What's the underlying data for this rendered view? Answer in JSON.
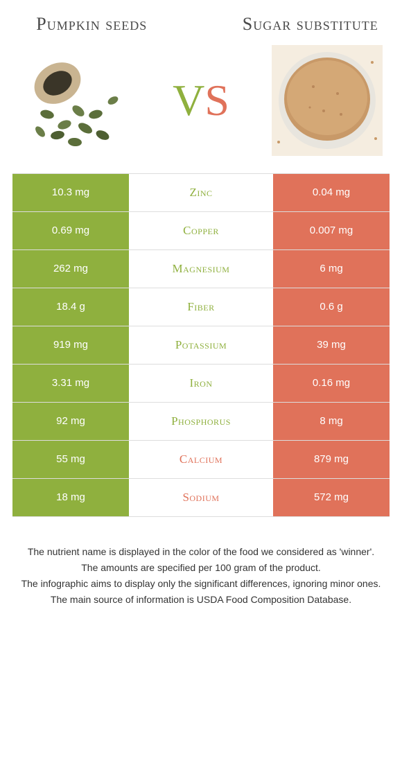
{
  "colors": {
    "left": "#8fb03e",
    "right": "#e0725a",
    "row_border": "#dddddd",
    "text_dark": "#4a4a4a"
  },
  "header": {
    "left_title": "Pumpkin seeds",
    "right_title": "Sugar substitute",
    "vs_v": "V",
    "vs_s": "S"
  },
  "rows": [
    {
      "left": "10.3 mg",
      "label": "Zinc",
      "right": "0.04 mg",
      "winner": "left"
    },
    {
      "left": "0.69 mg",
      "label": "Copper",
      "right": "0.007 mg",
      "winner": "left"
    },
    {
      "left": "262 mg",
      "label": "Magnesium",
      "right": "6 mg",
      "winner": "left"
    },
    {
      "left": "18.4 g",
      "label": "Fiber",
      "right": "0.6 g",
      "winner": "left"
    },
    {
      "left": "919 mg",
      "label": "Potassium",
      "right": "39 mg",
      "winner": "left"
    },
    {
      "left": "3.31 mg",
      "label": "Iron",
      "right": "0.16 mg",
      "winner": "left"
    },
    {
      "left": "92 mg",
      "label": "Phosphorus",
      "right": "8 mg",
      "winner": "left"
    },
    {
      "left": "55 mg",
      "label": "Calcium",
      "right": "879 mg",
      "winner": "right"
    },
    {
      "left": "18 mg",
      "label": "Sodium",
      "right": "572 mg",
      "winner": "right"
    }
  ],
  "footer": {
    "line1": "The nutrient name is displayed in the color of the food we considered as 'winner'.",
    "line2": "The amounts are specified per 100 gram of the product.",
    "line3": "The infographic aims to display only the significant differences, ignoring minor ones.",
    "line4": "The main source of information is USDA Food Composition Database."
  }
}
